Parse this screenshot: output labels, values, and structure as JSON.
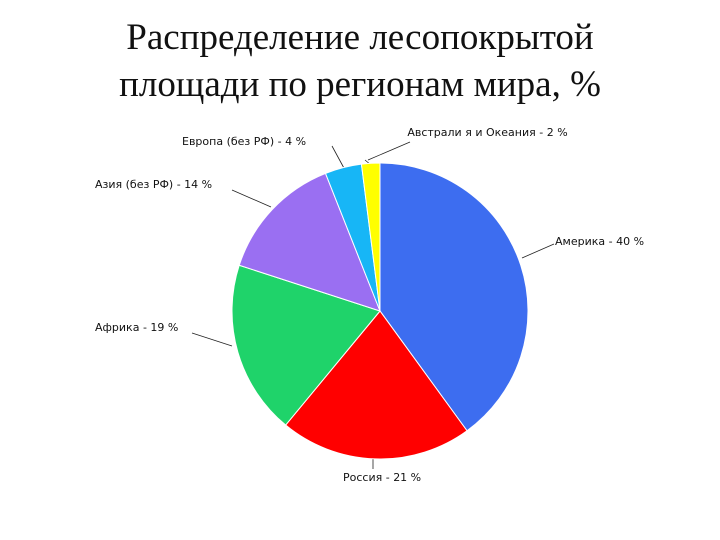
{
  "chart_data": {
    "type": "pie",
    "title": "Распределение лесопокрытой площади по регионам мира, %",
    "values": [
      40,
      21,
      19,
      14,
      4,
      2
    ],
    "value_labels": [
      "Америка - 40 %",
      "Россия - 21 %",
      "Африка - 19 %",
      "Азия (без РФ) - 14 %",
      "Европа (без РФ) - 4 %",
      "Австрали я и Океания - 2 %"
    ],
    "colors": [
      "#3d6df0",
      "#ff0000",
      "#1fd36a",
      "#9a6ff2",
      "#17b6f6",
      "#ffff00"
    ]
  }
}
